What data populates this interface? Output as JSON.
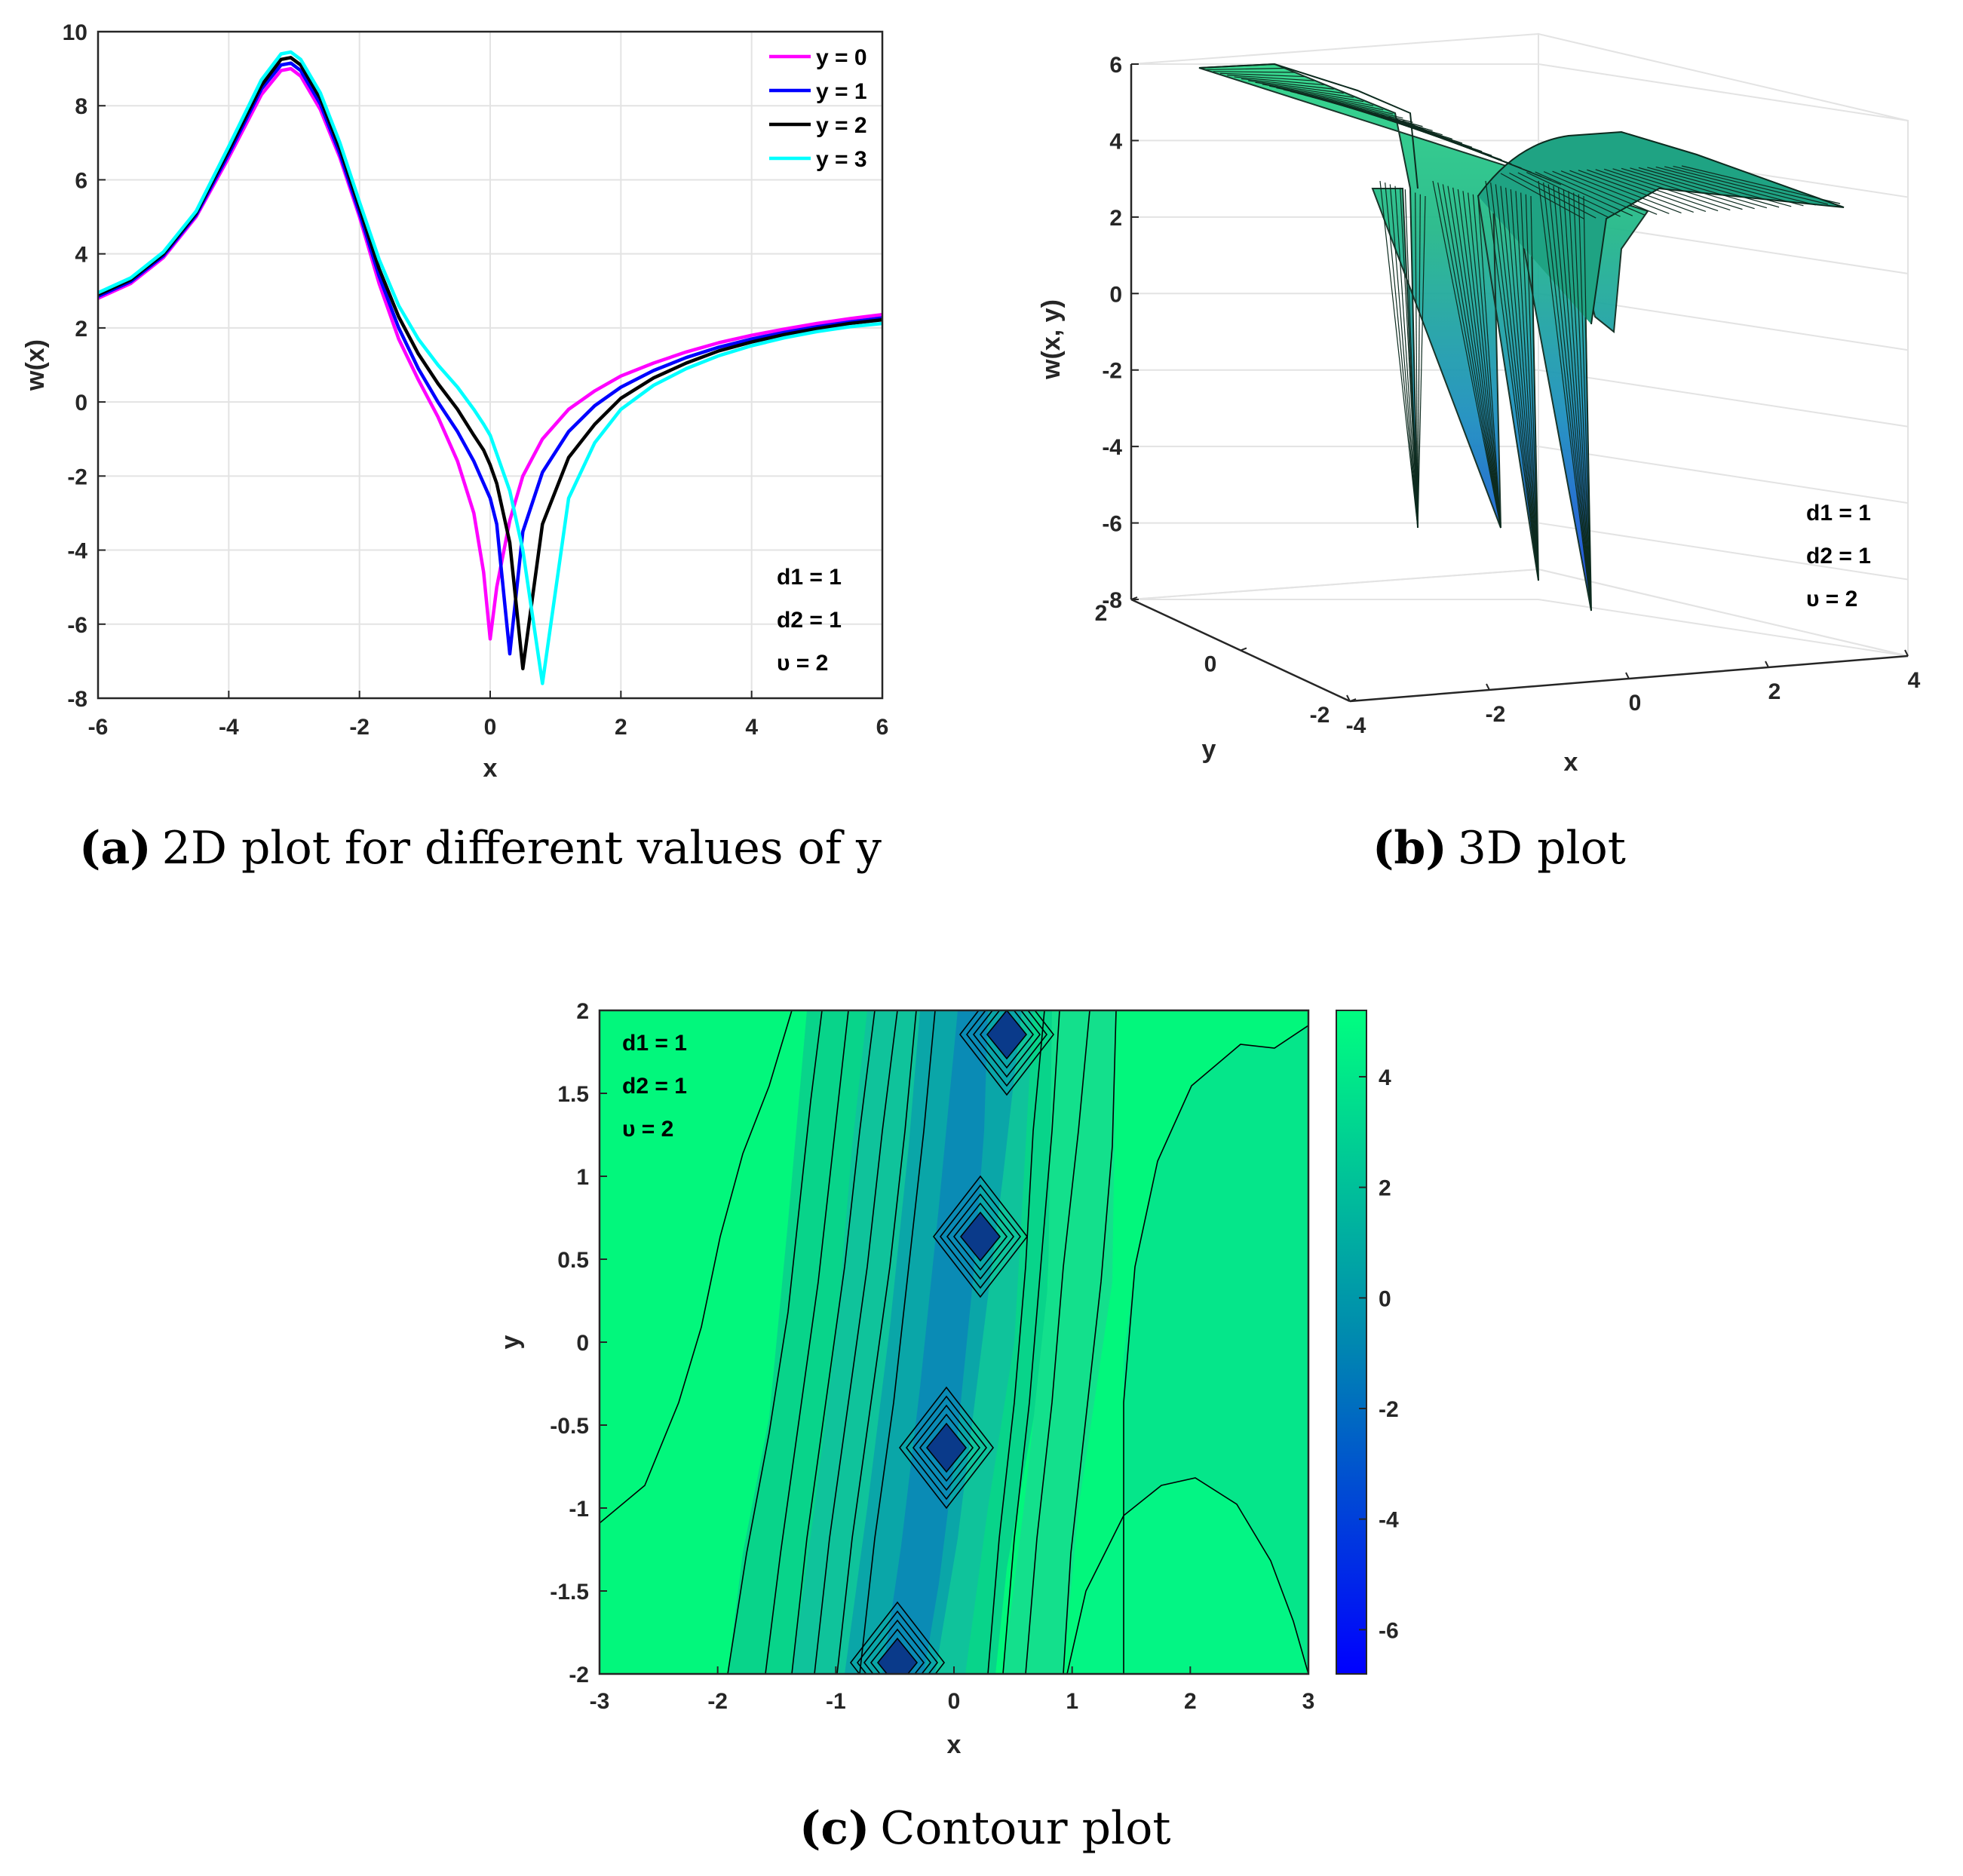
{
  "chart_data": [
    {
      "id": "a",
      "type": "line",
      "caption": {
        "letter": "(a)",
        "text": "2D plot for different values of y"
      },
      "xlabel": "x",
      "ylabel": "w(x)",
      "xlim": [
        -6,
        6
      ],
      "ylim": [
        -8,
        10
      ],
      "xticks": [
        "-6",
        "-4",
        "-2",
        "0",
        "2",
        "4",
        "6"
      ],
      "yticks": [
        "-8",
        "-6",
        "-4",
        "-2",
        "0",
        "2",
        "4",
        "6",
        "8",
        "10"
      ],
      "grid": true,
      "legend_position": "top-right",
      "params": [
        "d1 = 1",
        "d2 = 1",
        "υ = 2"
      ],
      "x": [
        -6,
        -5.5,
        -5,
        -4.5,
        -4,
        -3.5,
        -3.2,
        -3.05,
        -2.9,
        -2.6,
        -2.3,
        -2,
        -1.7,
        -1.4,
        -1.1,
        -0.8,
        -0.5,
        -0.25,
        -0.1,
        0,
        0.1,
        0.3,
        0.5,
        0.8,
        1.2,
        1.6,
        2,
        2.5,
        3,
        3.5,
        4,
        4.5,
        5,
        5.5,
        6
      ],
      "series": [
        {
          "name": "y = 0",
          "color": "#ff00ff",
          "values": [
            2.8,
            3.2,
            3.9,
            5.0,
            6.6,
            8.3,
            8.95,
            9.0,
            8.8,
            7.9,
            6.6,
            5.0,
            3.2,
            1.7,
            0.6,
            -0.4,
            -1.6,
            -3.0,
            -4.6,
            -6.4,
            -5.0,
            -3.2,
            -2.0,
            -1.0,
            -0.2,
            0.3,
            0.7,
            1.05,
            1.35,
            1.6,
            1.8,
            1.97,
            2.12,
            2.25,
            2.36
          ]
        },
        {
          "name": "y = 1",
          "color": "#0000ff",
          "values": [
            2.85,
            3.25,
            3.95,
            5.05,
            6.7,
            8.45,
            9.1,
            9.15,
            8.95,
            8.05,
            6.7,
            5.1,
            3.4,
            2.0,
            0.9,
            0.0,
            -0.8,
            -1.6,
            -2.2,
            -2.6,
            -3.3,
            -6.8,
            -3.5,
            -1.9,
            -0.8,
            -0.1,
            0.4,
            0.85,
            1.2,
            1.48,
            1.7,
            1.88,
            2.03,
            2.16,
            2.27
          ]
        },
        {
          "name": "y = 2",
          "color": "#000000",
          "values": [
            2.9,
            3.3,
            4.0,
            5.1,
            6.8,
            8.55,
            9.25,
            9.3,
            9.1,
            8.2,
            6.85,
            5.25,
            3.6,
            2.3,
            1.3,
            0.5,
            -0.2,
            -0.9,
            -1.3,
            -1.7,
            -2.2,
            -3.8,
            -7.2,
            -3.3,
            -1.5,
            -0.6,
            0.1,
            0.65,
            1.05,
            1.38,
            1.62,
            1.82,
            1.98,
            2.12,
            2.22
          ]
        },
        {
          "name": "y = 3",
          "color": "#00ffff",
          "values": [
            2.95,
            3.35,
            4.05,
            5.15,
            6.9,
            8.7,
            9.4,
            9.45,
            9.25,
            8.35,
            7.0,
            5.4,
            3.85,
            2.6,
            1.7,
            1.0,
            0.4,
            -0.2,
            -0.6,
            -0.9,
            -1.4,
            -2.4,
            -4.0,
            -7.6,
            -2.6,
            -1.1,
            -0.2,
            0.45,
            0.9,
            1.25,
            1.52,
            1.73,
            1.9,
            2.03,
            2.12
          ]
        }
      ]
    },
    {
      "id": "b",
      "type": "surface",
      "caption": {
        "letter": "(b)",
        "text": "3D plot"
      },
      "xlabel": "x",
      "ylabel": "y",
      "zlabel": "w(x, y)",
      "xticks": [
        "-4",
        "-2",
        "0",
        "2",
        "4"
      ],
      "yticks": [
        "-2",
        "0",
        "2"
      ],
      "zticks": [
        "-8",
        "-6",
        "-4",
        "-2",
        "0",
        "2",
        "4",
        "6"
      ],
      "zlim": [
        -8,
        6
      ],
      "params": [
        "d1 = 1",
        "d2 = 1",
        "υ = 2"
      ]
    },
    {
      "id": "c",
      "type": "contour",
      "caption": {
        "letter": "(c)",
        "text": "Contour plot"
      },
      "xlabel": "x",
      "ylabel": "y",
      "xlim": [
        -3,
        3
      ],
      "ylim": [
        -2,
        2
      ],
      "xticks": [
        "-3",
        "-2",
        "-1",
        "0",
        "1",
        "2",
        "3"
      ],
      "yticks": [
        "-2",
        "-1.5",
        "-1",
        "-0.5",
        "0",
        "0.5",
        "1",
        "1.5",
        "2"
      ],
      "colorbar_ticks": [
        "-6",
        "-4",
        "-2",
        "0",
        "2",
        "4"
      ],
      "colorbar_range": [
        -6.8,
        5.2
      ],
      "params": [
        "d1 = 1",
        "d2 = 1",
        "υ = 2"
      ]
    }
  ]
}
